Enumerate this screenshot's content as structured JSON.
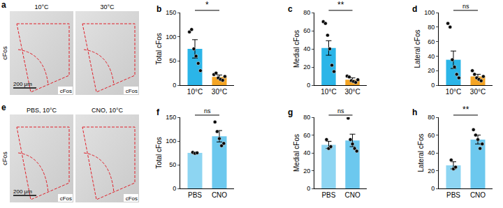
{
  "images": [
    {
      "panel": "a",
      "stain": "cFos",
      "scale_bar": "200 μm",
      "labels": [
        "10°C",
        "30°C"
      ]
    },
    {
      "panel": "e",
      "stain": "cFos",
      "scale_bar": "200 μm",
      "labels": [
        "PBS, 10°C",
        "CNO, 10°C"
      ]
    }
  ],
  "chart_data": [
    {
      "panel": "b",
      "type": "bar",
      "y_label": "Total cFos",
      "categories": [
        "10°C",
        "30°C"
      ],
      "values": [
        75,
        17
      ],
      "errors": [
        19,
        4
      ],
      "points": [
        [
          110,
          115,
          75,
          60,
          45,
          30
        ],
        [
          22,
          25,
          15,
          12,
          10,
          18
        ]
      ],
      "colors": [
        "#2bb5e8",
        "#f5a524"
      ],
      "ylim": [
        0,
        150
      ],
      "yticks": [
        0,
        50,
        100,
        150
      ],
      "annotation": "*"
    },
    {
      "panel": "c",
      "type": "bar",
      "y_label": "Medial cFos",
      "categories": [
        "10°C",
        "30°C"
      ],
      "values": [
        41,
        6
      ],
      "errors": [
        8,
        2
      ],
      "points": [
        [
          70,
          68,
          55,
          40,
          22,
          15
        ],
        [
          10,
          9,
          5,
          4,
          3,
          6
        ]
      ],
      "colors": [
        "#2bb5e8",
        "#f5a524"
      ],
      "ylim": [
        0,
        80
      ],
      "yticks": [
        0,
        20,
        40,
        60,
        80
      ],
      "annotation": "**"
    },
    {
      "panel": "d",
      "type": "bar",
      "y_label": "Lateral cFos",
      "categories": [
        "10°C",
        "30°C"
      ],
      "values": [
        35,
        12
      ],
      "errors": [
        12,
        3
      ],
      "points": [
        [
          85,
          80,
          35,
          25,
          15,
          10
        ],
        [
          20,
          15,
          10,
          8,
          6,
          12
        ]
      ],
      "colors": [
        "#2bb5e8",
        "#f5a524"
      ],
      "ylim": [
        0,
        100
      ],
      "yticks": [
        0,
        20,
        40,
        60,
        80,
        100
      ],
      "annotation": "ns"
    },
    {
      "panel": "f",
      "type": "bar",
      "y_label": "Total cFos",
      "categories": [
        "PBS",
        "CNO"
      ],
      "values": [
        75,
        110
      ],
      "errors": [
        2,
        12
      ],
      "points": [
        [
          76,
          74,
          75
        ],
        [
          140,
          120,
          105,
          90,
          95
        ]
      ],
      "colors": [
        "#8dd5f2",
        "#6cc8ee"
      ],
      "ylim": [
        0,
        150
      ],
      "yticks": [
        0,
        50,
        100,
        150
      ],
      "annotation": "ns"
    },
    {
      "panel": "g",
      "type": "bar",
      "y_label": "Medial cFos",
      "categories": [
        "PBS",
        "CNO"
      ],
      "values": [
        49,
        54
      ],
      "errors": [
        4,
        7
      ],
      "points": [
        [
          55,
          45,
          47
        ],
        [
          79,
          55,
          50,
          45,
          42
        ]
      ],
      "colors": [
        "#8dd5f2",
        "#6cc8ee"
      ],
      "ylim": [
        0,
        80
      ],
      "yticks": [
        0,
        20,
        40,
        60,
        80
      ],
      "annotation": "ns"
    },
    {
      "panel": "h",
      "type": "bar",
      "y_label": "Lateral cFos",
      "categories": [
        "PBS",
        "CNO"
      ],
      "values": [
        26,
        55
      ],
      "errors": [
        4,
        5
      ],
      "points": [
        [
          32,
          22,
          24
        ],
        [
          66,
          60,
          55,
          45,
          50
        ]
      ],
      "colors": [
        "#8dd5f2",
        "#6cc8ee"
      ],
      "ylim": [
        0,
        80
      ],
      "yticks": [
        0,
        20,
        40,
        60,
        80
      ],
      "annotation": "**"
    }
  ]
}
